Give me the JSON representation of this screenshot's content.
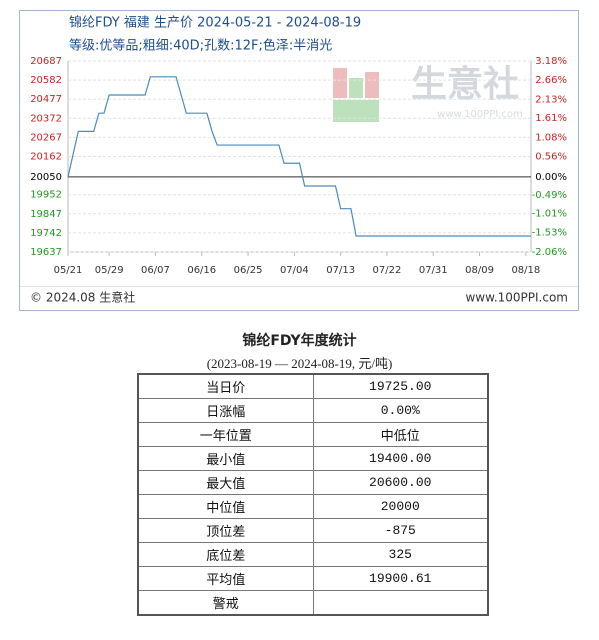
{
  "chart_data": {
    "type": "line",
    "title": "锦纶FDY 福建 生产价 2024-05-21 - 2024-08-19",
    "subtitle": "等级:优等品;粗细:40D;孔数:12F;色泽:半消光",
    "x": [
      "2024-05-21",
      "2024-05-23",
      "2024-05-26",
      "2024-05-27",
      "2024-05-28",
      "2024-05-29",
      "2024-06-05",
      "2024-06-06",
      "2024-06-11",
      "2024-06-12",
      "2024-06-13",
      "2024-06-17",
      "2024-06-18",
      "2024-06-19",
      "2024-07-01",
      "2024-07-02",
      "2024-07-05",
      "2024-07-06",
      "2024-07-12",
      "2024-07-13",
      "2024-07-15",
      "2024-07-16",
      "2024-08-19"
    ],
    "series": [
      {
        "color": "#4a8bbd",
        "values": [
          20050,
          20300,
          20300,
          20400,
          20400,
          20500,
          20500,
          20600,
          20600,
          20500,
          20400,
          20400,
          20300,
          20225,
          20225,
          20125,
          20125,
          20000,
          20000,
          19875,
          19875,
          19725,
          19725
        ]
      }
    ],
    "xlim": [
      "2024-05-21",
      "2024-08-19"
    ],
    "xticks": [
      {
        "value": "2024-05-21",
        "label": "05/21"
      },
      {
        "value": "2024-05-29",
        "label": "05/29"
      },
      {
        "value": "2024-06-07",
        "label": "06/07"
      },
      {
        "value": "2024-06-16",
        "label": "06/16"
      },
      {
        "value": "2024-06-25",
        "label": "06/25"
      },
      {
        "value": "2024-07-04",
        "label": "07/04"
      },
      {
        "value": "2024-07-13",
        "label": "07/13"
      },
      {
        "value": "2024-07-22",
        "label": "07/22"
      },
      {
        "value": "2024-07-31",
        "label": "07/31"
      },
      {
        "value": "2024-08-09",
        "label": "08/09"
      },
      {
        "value": "2024-08-18",
        "label": "08/18"
      }
    ],
    "ylim": [
      19637,
      20687
    ],
    "yticks": [
      20687,
      20582,
      20477,
      20372,
      20267,
      20162,
      20050,
      19952,
      19847,
      19742,
      19637
    ],
    "y2lim": [
      -2.06,
      3.18
    ],
    "y2ticks": [
      {
        "value": 3.18,
        "label": "3.18%"
      },
      {
        "value": 2.66,
        "label": "2.66%"
      },
      {
        "value": 2.13,
        "label": "2.13%"
      },
      {
        "value": 1.61,
        "label": "1.61%"
      },
      {
        "value": 1.08,
        "label": "1.08%"
      },
      {
        "value": 0.56,
        "label": "0.56%"
      },
      {
        "value": 0,
        "label": "0.00%"
      },
      {
        "value": -0.49,
        "label": "-0.49%"
      },
      {
        "value": -1.01,
        "label": "-1.01%"
      },
      {
        "value": -1.53,
        "label": "-1.53%"
      },
      {
        "value": -2.06,
        "label": "-2.06%"
      }
    ],
    "grid": true
  },
  "watermark": {
    "brand": "生意社",
    "url": "www.100PPI.com"
  },
  "footer": {
    "copyright": "© 2024.08 生意社",
    "url": "www.100PPI.com"
  },
  "table": {
    "title": "锦纶FDY年度统计",
    "subtitle": "(2023-08-19 — 2024-08-19, 元/吨)",
    "rows": [
      [
        "当日价",
        "19725.00"
      ],
      [
        "日涨幅",
        "0.00%"
      ],
      [
        "一年位置",
        "中低位"
      ],
      [
        "最小值",
        "19400.00"
      ],
      [
        "最大值",
        "20600.00"
      ],
      [
        "中位值",
        "20000"
      ],
      [
        "顶位差",
        "-875"
      ],
      [
        "底位差",
        "325"
      ],
      [
        "平均值",
        "19900.61"
      ],
      [
        "警戒"
      ]
    ]
  }
}
